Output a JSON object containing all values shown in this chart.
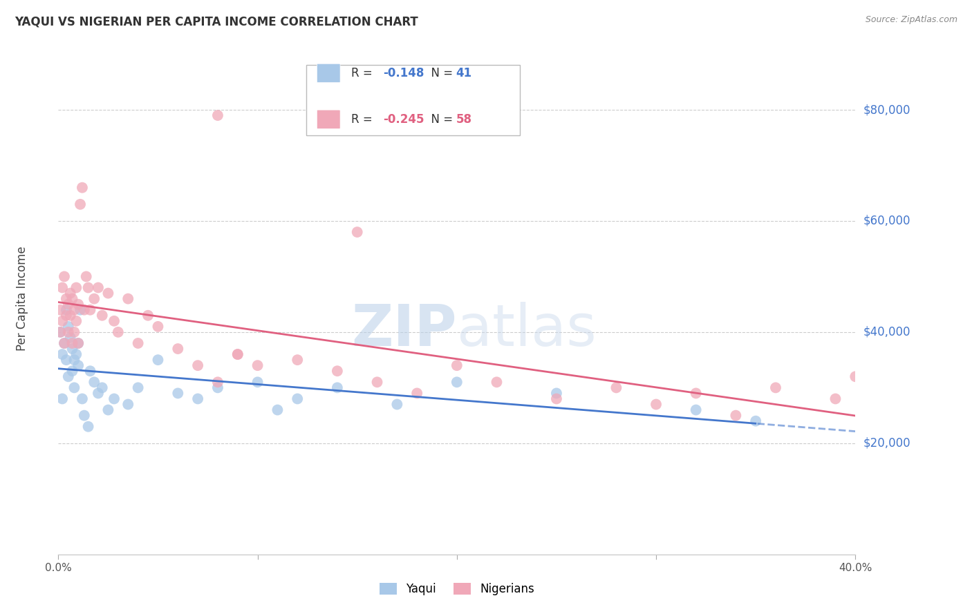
{
  "title": "YAQUI VS NIGERIAN PER CAPITA INCOME CORRELATION CHART",
  "source": "Source: ZipAtlas.com",
  "ylabel": "Per Capita Income",
  "yaxis_labels": [
    "$20,000",
    "$40,000",
    "$60,000",
    "$80,000"
  ],
  "yaxis_values": [
    20000,
    40000,
    60000,
    80000
  ],
  "ylim": [
    0,
    92000
  ],
  "xlim": [
    0.0,
    0.4
  ],
  "watermark": "ZIPatlas",
  "blue_color": "#a8c8e8",
  "pink_color": "#f0a8b8",
  "blue_line_color": "#4477cc",
  "pink_line_color": "#e06080",
  "blue_r": "-0.148",
  "blue_n": "41",
  "pink_r": "-0.245",
  "pink_n": "58",
  "yaqui_x": [
    0.001,
    0.002,
    0.002,
    0.003,
    0.004,
    0.004,
    0.005,
    0.005,
    0.006,
    0.007,
    0.007,
    0.008,
    0.008,
    0.009,
    0.01,
    0.01,
    0.011,
    0.012,
    0.013,
    0.015,
    0.016,
    0.018,
    0.02,
    0.022,
    0.025,
    0.028,
    0.035,
    0.04,
    0.05,
    0.06,
    0.07,
    0.08,
    0.1,
    0.11,
    0.12,
    0.14,
    0.17,
    0.2,
    0.25,
    0.32,
    0.35
  ],
  "yaqui_y": [
    40000,
    36000,
    28000,
    38000,
    35000,
    44000,
    32000,
    41000,
    39000,
    37000,
    33000,
    35000,
    30000,
    36000,
    34000,
    38000,
    44000,
    28000,
    25000,
    23000,
    33000,
    31000,
    29000,
    30000,
    26000,
    28000,
    27000,
    30000,
    35000,
    29000,
    28000,
    30000,
    31000,
    26000,
    28000,
    30000,
    27000,
    31000,
    29000,
    26000,
    24000
  ],
  "nigerian_x": [
    0.001,
    0.001,
    0.002,
    0.002,
    0.003,
    0.003,
    0.004,
    0.004,
    0.005,
    0.005,
    0.006,
    0.006,
    0.007,
    0.007,
    0.008,
    0.008,
    0.009,
    0.009,
    0.01,
    0.01,
    0.011,
    0.012,
    0.013,
    0.014,
    0.015,
    0.016,
    0.018,
    0.02,
    0.022,
    0.025,
    0.028,
    0.03,
    0.035,
    0.04,
    0.045,
    0.05,
    0.06,
    0.07,
    0.08,
    0.09,
    0.1,
    0.12,
    0.14,
    0.16,
    0.18,
    0.2,
    0.22,
    0.25,
    0.28,
    0.3,
    0.32,
    0.34,
    0.36,
    0.39,
    0.08,
    0.15,
    0.09,
    0.4
  ],
  "nigerian_y": [
    44000,
    40000,
    48000,
    42000,
    50000,
    38000,
    46000,
    43000,
    45000,
    40000,
    47000,
    43000,
    46000,
    38000,
    44000,
    40000,
    48000,
    42000,
    45000,
    38000,
    63000,
    66000,
    44000,
    50000,
    48000,
    44000,
    46000,
    48000,
    43000,
    47000,
    42000,
    40000,
    46000,
    38000,
    43000,
    41000,
    37000,
    34000,
    31000,
    36000,
    34000,
    35000,
    33000,
    31000,
    29000,
    34000,
    31000,
    28000,
    30000,
    27000,
    29000,
    25000,
    30000,
    28000,
    79000,
    58000,
    36000,
    32000
  ]
}
